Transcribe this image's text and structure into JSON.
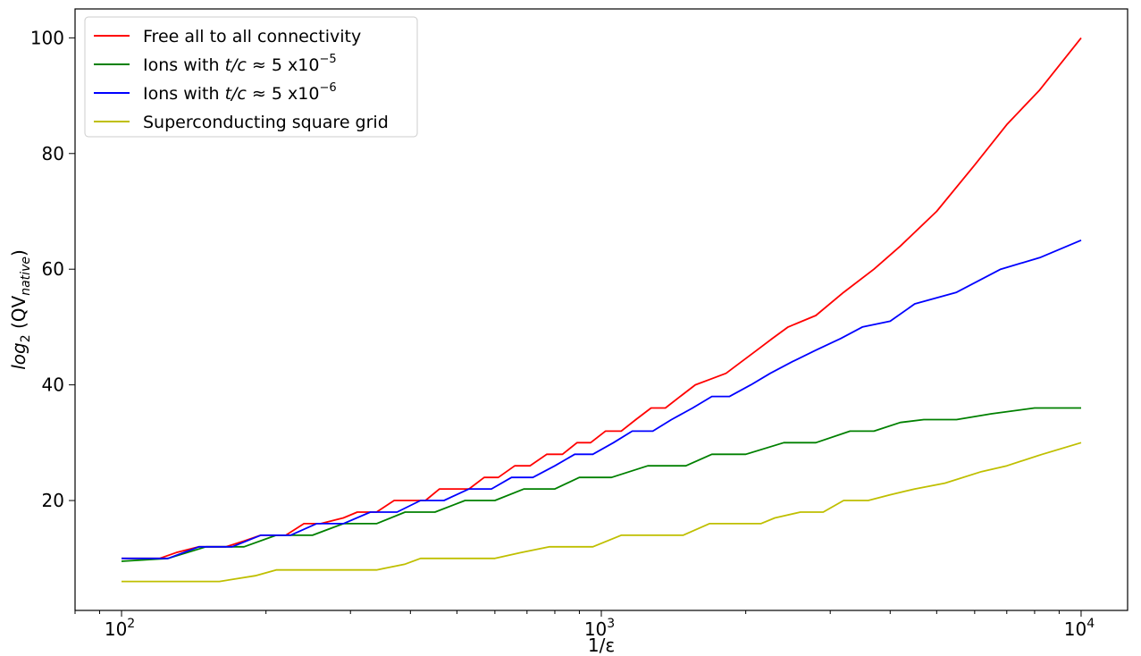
{
  "chart_data": {
    "type": "line",
    "xlabel": "1/ε",
    "ylabel_main": "log",
    "ylabel_sub": "2",
    "ylabel_rest": " (QV",
    "ylabel_rest_sub": "native",
    "ylabel_close": ")",
    "xscale": "log",
    "xlim": [
      80,
      12500
    ],
    "ylim": [
      1,
      105
    ],
    "x_ticks": [
      {
        "value": 100,
        "base": "10",
        "exp": "2"
      },
      {
        "value": 1000,
        "base": "10",
        "exp": "3"
      },
      {
        "value": 10000,
        "base": "10",
        "exp": "4"
      }
    ],
    "y_ticks": [
      {
        "value": 20,
        "label": "20"
      },
      {
        "value": 40,
        "label": "40"
      },
      {
        "value": 60,
        "label": "60"
      },
      {
        "value": 80,
        "label": "80"
      },
      {
        "value": 100,
        "label": "100"
      }
    ],
    "grid": false,
    "legend_position": "top-left",
    "series": [
      {
        "name": "Free all to all connectivity",
        "color": "#ff0000",
        "x": [
          100,
          120,
          130,
          145,
          165,
          180,
          195,
          220,
          240,
          260,
          290,
          310,
          340,
          370,
          400,
          430,
          460,
          490,
          530,
          570,
          610,
          660,
          710,
          770,
          830,
          890,
          950,
          1020,
          1100,
          1180,
          1270,
          1360,
          1460,
          1570,
          1690,
          1820,
          1960,
          2110,
          2270,
          2450,
          2800,
          3200,
          3700,
          4200,
          5000,
          6000,
          7000,
          8200,
          10000
        ],
        "values": [
          10,
          10,
          11,
          12,
          12,
          13,
          14,
          14,
          16,
          16,
          17,
          18,
          18,
          20,
          20,
          20,
          22,
          22,
          22,
          24,
          24,
          26,
          26,
          28,
          28,
          30,
          30,
          32,
          32,
          34,
          36,
          36,
          38,
          40,
          41,
          42,
          44,
          46,
          48,
          50,
          52,
          56,
          60,
          64,
          70,
          78,
          85,
          91,
          100
        ]
      },
      {
        "name": "Ions with t/c ≈ 5 x10−5",
        "color": "#008000",
        "x": [
          100,
          125,
          150,
          180,
          210,
          250,
          290,
          340,
          390,
          450,
          520,
          600,
          690,
          800,
          900,
          1050,
          1250,
          1500,
          1700,
          2000,
          2400,
          2800,
          3300,
          3700,
          4200,
          4700,
          5500,
          6500,
          8000,
          10000
        ],
        "values": [
          9.5,
          10,
          12,
          12,
          14,
          14,
          16,
          16,
          18,
          18,
          20,
          20,
          22,
          22,
          24,
          24,
          26,
          26,
          28,
          28,
          30,
          30,
          32,
          32,
          33.5,
          34,
          34,
          35,
          36,
          36
        ]
      },
      {
        "name": "Ions with t/c ≈ 5 x10−6",
        "color": "#0000ff",
        "x": [
          100,
          125,
          145,
          170,
          195,
          225,
          255,
          290,
          330,
          375,
          420,
          470,
          530,
          590,
          650,
          720,
          800,
          880,
          960,
          1060,
          1160,
          1280,
          1400,
          1550,
          1700,
          1850,
          2050,
          2250,
          2500,
          2800,
          3150,
          3500,
          4000,
          4500,
          5500,
          6800,
          8200,
          10000
        ],
        "values": [
          10,
          10,
          12,
          12,
          14,
          14,
          16,
          16,
          18,
          18,
          20,
          20,
          22,
          22,
          24,
          24,
          26,
          28,
          28,
          30,
          32,
          32,
          34,
          36,
          38,
          38,
          40,
          42,
          44,
          46,
          48,
          50,
          51,
          54,
          56,
          60,
          62,
          65
        ]
      },
      {
        "name": "Superconducting square grid",
        "color": "#bfbf00",
        "x": [
          100,
          130,
          160,
          190,
          210,
          240,
          280,
          340,
          390,
          420,
          480,
          540,
          600,
          680,
          780,
          960,
          1100,
          1300,
          1480,
          1680,
          1900,
          2150,
          2300,
          2600,
          2900,
          3200,
          3600,
          4000,
          4500,
          5200,
          6200,
          7000,
          8300,
          10000
        ],
        "values": [
          6,
          6,
          6,
          7,
          8,
          8,
          8,
          8,
          9,
          10,
          10,
          10,
          10,
          11,
          12,
          12,
          14,
          14,
          14,
          16,
          16,
          16,
          17,
          18,
          18,
          20,
          20,
          21,
          22,
          23,
          25,
          26,
          28,
          30
        ]
      }
    ],
    "legend": [
      {
        "name": "Free all to all connectivity",
        "plain": true
      },
      {
        "name_prefix": "Ions with ",
        "name_italic": "t/c",
        "name_mid": " ≈ 5 x10",
        "name_sup": "−5"
      },
      {
        "name_prefix": "Ions with ",
        "name_italic": "t/c",
        "name_mid": " ≈ 5 x10",
        "name_sup": "−6"
      },
      {
        "name": "Superconducting square grid",
        "plain": true
      }
    ]
  }
}
